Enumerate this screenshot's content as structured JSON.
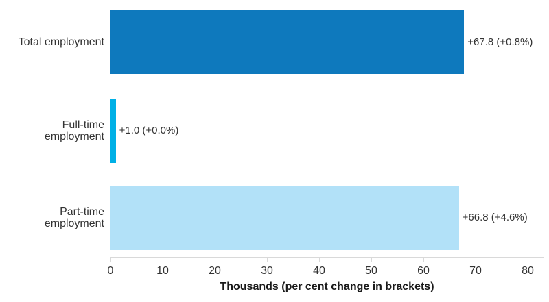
{
  "chart_data": {
    "type": "bar",
    "orientation": "horizontal",
    "title": "",
    "xlabel": "Thousands (per cent change in brackets)",
    "xlim": [
      0,
      80
    ],
    "xticks": [
      "0",
      "10",
      "20",
      "30",
      "40",
      "50",
      "60",
      "70",
      "80"
    ],
    "grid": false,
    "legend": false,
    "categories": [
      "Total employment",
      "Full-time employment",
      "Part-time employment"
    ],
    "category_label_lines": [
      [
        "Total employment"
      ],
      [
        "Full-time",
        "employment"
      ],
      [
        "Part-time",
        "employment"
      ]
    ],
    "values": [
      67.8,
      1.0,
      66.8
    ],
    "bar_labels": [
      "+67.8 (+0.8%)",
      "+1.0 (+0.0%)",
      "+66.8 (+4.6%)"
    ],
    "bar_colors": [
      "#0e79bd",
      "#00b0e6",
      "#b2e1f8"
    ],
    "axis_color": "#d9d9d9",
    "text_color": "#333333"
  }
}
